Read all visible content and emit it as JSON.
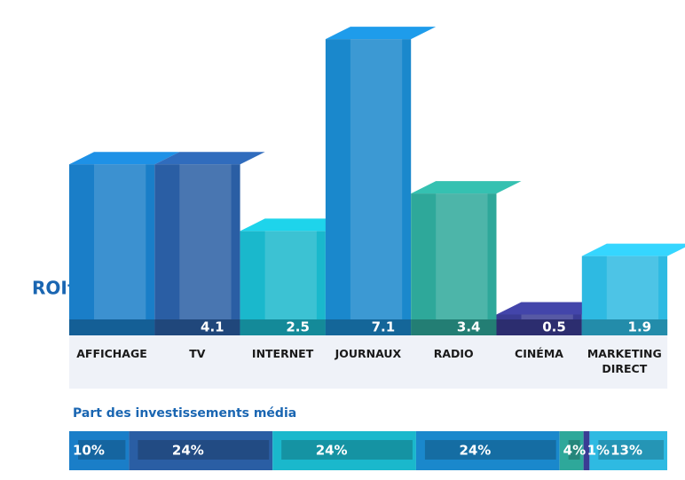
{
  "chart_data": [
    {
      "type": "bar3d",
      "ylabel": "ROI†",
      "categories": [
        "AFFICHAGE",
        "TV",
        "INTERNET",
        "JOURNAUX",
        "RADIO",
        "CINÉMA",
        "MARKETING DIRECT"
      ],
      "values": [
        4.1,
        4.1,
        2.5,
        7.1,
        3.4,
        0.5,
        1.9
      ],
      "value_labels": [
        null,
        "4.1",
        "2.5",
        "7.1",
        "3.4",
        "0.5",
        "1.9"
      ],
      "colors": [
        "#1a7ec8",
        "#2a5ea4",
        "#1ab8cc",
        "#1a88cc",
        "#2ea89a",
        "#3a3c94",
        "#2ebae2"
      ],
      "ylim": [
        0,
        7.4
      ]
    },
    {
      "type": "stacked_hbar",
      "title": "Part des investissements média",
      "values": [
        10,
        24,
        24,
        24,
        4,
        1,
        13
      ],
      "value_labels": [
        "10%",
        "24%",
        "24%",
        "24%",
        "4%",
        "1%",
        "13%"
      ],
      "colors": [
        "#1a7ec8",
        "#2a5ea4",
        "#1ab8cc",
        "#1a88cc",
        "#2ea89a",
        "#3a3c94",
        "#2ebae2"
      ],
      "xlim": [
        0,
        100
      ]
    }
  ]
}
